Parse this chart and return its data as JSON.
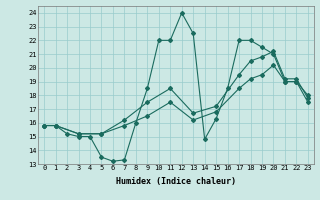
{
  "xlabel": "Humidex (Indice chaleur)",
  "ylabel": "",
  "bg_color": "#cce8e4",
  "line_color": "#1a6b5e",
  "xlim": [
    -0.5,
    23.5
  ],
  "ylim": [
    13,
    24.5
  ],
  "yticks": [
    13,
    14,
    15,
    16,
    17,
    18,
    19,
    20,
    21,
    22,
    23,
    24
  ],
  "xticks": [
    0,
    1,
    2,
    3,
    4,
    5,
    6,
    7,
    8,
    9,
    10,
    11,
    12,
    13,
    14,
    15,
    16,
    17,
    18,
    19,
    20,
    21,
    22,
    23
  ],
  "series": [
    {
      "x": [
        0,
        1,
        2,
        3,
        4,
        5,
        6,
        7,
        8,
        9,
        10,
        11,
        12,
        13,
        14,
        15,
        16,
        17,
        18,
        19,
        20,
        21,
        22,
        23
      ],
      "y": [
        15.8,
        15.8,
        15.2,
        15.0,
        15.0,
        13.5,
        13.2,
        13.3,
        16.0,
        18.5,
        22.0,
        22.0,
        24.0,
        22.5,
        14.8,
        16.3,
        18.5,
        22.0,
        22.0,
        21.5,
        21.0,
        19.0,
        19.0,
        18.0
      ]
    },
    {
      "x": [
        0,
        1,
        3,
        5,
        7,
        9,
        11,
        13,
        15,
        17,
        18,
        19,
        20,
        21,
        22,
        23
      ],
      "y": [
        15.8,
        15.8,
        15.2,
        15.2,
        16.2,
        17.5,
        18.5,
        16.7,
        17.2,
        19.5,
        20.5,
        20.8,
        21.2,
        19.2,
        19.2,
        17.8
      ]
    },
    {
      "x": [
        0,
        1,
        3,
        5,
        7,
        9,
        11,
        13,
        15,
        17,
        18,
        19,
        20,
        21,
        22,
        23
      ],
      "y": [
        15.8,
        15.8,
        15.2,
        15.2,
        15.8,
        16.5,
        17.5,
        16.2,
        16.8,
        18.5,
        19.2,
        19.5,
        20.2,
        19.0,
        19.0,
        17.5
      ]
    }
  ]
}
